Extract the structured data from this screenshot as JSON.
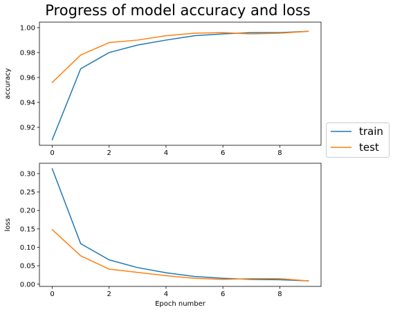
{
  "figure": {
    "title": "Progress of model accuracy and loss"
  },
  "legend": {
    "placement": "right, between panels",
    "entries": [
      {
        "label": "train",
        "color": "#1f77b4"
      },
      {
        "label": "test",
        "color": "#ff7f0e"
      }
    ]
  },
  "chart_data": [
    {
      "type": "line",
      "title": "",
      "xlabel": "",
      "ylabel": "accuracy",
      "xlim": [
        -0.45,
        9.45
      ],
      "ylim": [
        0.9056,
        1.0044
      ],
      "xticks": [
        0,
        2,
        4,
        6,
        8
      ],
      "yticks": [
        0.92,
        0.94,
        0.96,
        0.98,
        1.0
      ],
      "ytick_labels": [
        "0.92",
        "0.94",
        "0.96",
        "0.98",
        "1.00"
      ],
      "grid": false,
      "x": [
        0,
        1,
        2,
        3,
        4,
        5,
        6,
        7,
        8,
        9
      ],
      "series": [
        {
          "name": "train",
          "color": "#1f77b4",
          "values": [
            0.91,
            0.967,
            0.98,
            0.986,
            0.99,
            0.9935,
            0.995,
            0.996,
            0.996,
            0.997
          ]
        },
        {
          "name": "test",
          "color": "#ff7f0e",
          "values": [
            0.956,
            0.978,
            0.988,
            0.99,
            0.9935,
            0.9955,
            0.996,
            0.995,
            0.9955,
            0.997
          ]
        }
      ]
    },
    {
      "type": "line",
      "title": "",
      "xlabel": "Epoch number",
      "ylabel": "loss",
      "xlim": [
        -0.45,
        9.45
      ],
      "ylim": [
        -0.006,
        0.328
      ],
      "xticks": [
        0,
        2,
        4,
        6,
        8
      ],
      "yticks": [
        0.0,
        0.05,
        0.1,
        0.15,
        0.2,
        0.25,
        0.3
      ],
      "ytick_labels": [
        "0.00",
        "0.05",
        "0.10",
        "0.15",
        "0.20",
        "0.25",
        "0.30"
      ],
      "grid": false,
      "x": [
        0,
        1,
        2,
        3,
        4,
        5,
        6,
        7,
        8,
        9
      ],
      "series": [
        {
          "name": "train",
          "color": "#1f77b4",
          "values": [
            0.313,
            0.11,
            0.066,
            0.045,
            0.031,
            0.021,
            0.016,
            0.013,
            0.012,
            0.009
          ]
        },
        {
          "name": "test",
          "color": "#ff7f0e",
          "values": [
            0.148,
            0.077,
            0.041,
            0.032,
            0.023,
            0.016,
            0.013,
            0.015,
            0.015,
            0.009
          ]
        }
      ]
    }
  ]
}
